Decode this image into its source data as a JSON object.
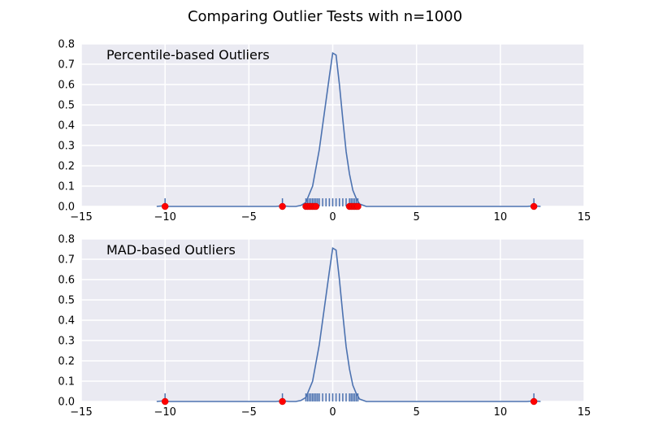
{
  "figure": {
    "title": "Comparing Outlier Tests with n=1000"
  },
  "chart_data": [
    {
      "type": "line",
      "annotation": "Percentile-based Outliers",
      "xlim": [
        -15,
        15
      ],
      "ylim": [
        0,
        0.8
      ],
      "xticks": [
        -15,
        -10,
        -5,
        0,
        5,
        10,
        15
      ],
      "xtick_labels": [
        "−15",
        "−10",
        "−5",
        "0",
        "5",
        "10",
        "15"
      ],
      "yticks": [
        0.0,
        0.1,
        0.2,
        0.3,
        0.4,
        0.5,
        0.6,
        0.7,
        0.8
      ],
      "ytick_labels": [
        "0.0",
        "0.1",
        "0.2",
        "0.3",
        "0.4",
        "0.5",
        "0.6",
        "0.7",
        "0.8"
      ],
      "grid": true,
      "density": {
        "x": [
          -10.5,
          -10.1,
          -9.8,
          -3.4,
          -3.0,
          -2.6,
          -2.2,
          -1.9,
          -1.6,
          -1.4,
          -1.2,
          -1.0,
          -0.8,
          -0.6,
          -0.4,
          -0.2,
          0.0,
          0.2,
          0.4,
          0.6,
          0.8,
          1.0,
          1.2,
          1.4,
          1.6,
          2.0,
          11.6,
          12.0,
          12.4
        ],
        "y": [
          0.0,
          0.003,
          0.0,
          0.0,
          0.003,
          0.0,
          0.0,
          0.005,
          0.02,
          0.06,
          0.1,
          0.19,
          0.28,
          0.4,
          0.52,
          0.64,
          0.755,
          0.745,
          0.6,
          0.43,
          0.27,
          0.16,
          0.08,
          0.04,
          0.012,
          0.0,
          0.0,
          0.003,
          0.0
        ]
      },
      "rug": [
        -10.0,
        -3.0,
        -1.6,
        -1.5,
        -1.4,
        -1.3,
        -1.2,
        -1.1,
        -1.0,
        -0.9,
        -0.8,
        -0.6,
        -0.4,
        -0.2,
        0.0,
        0.2,
        0.4,
        0.6,
        0.8,
        1.0,
        1.1,
        1.2,
        1.3,
        1.4,
        1.5,
        12.0
      ],
      "outliers": [
        -10.0,
        -3.0,
        -1.6,
        -1.5,
        -1.4,
        -1.3,
        -1.2,
        -1.1,
        -1.0,
        1.0,
        1.1,
        1.2,
        1.3,
        1.4,
        1.5,
        12.0
      ],
      "colors": {
        "line": "#4c72b0",
        "outlier": "#ff0000",
        "background": "#eaeaf2",
        "grid": "#ffffff"
      }
    },
    {
      "type": "line",
      "annotation": "MAD-based Outliers",
      "xlim": [
        -15,
        15
      ],
      "ylim": [
        0,
        0.8
      ],
      "xticks": [
        -15,
        -10,
        -5,
        0,
        5,
        10,
        15
      ],
      "xtick_labels": [
        "−15",
        "−10",
        "−5",
        "0",
        "5",
        "10",
        "15"
      ],
      "yticks": [
        0.0,
        0.1,
        0.2,
        0.3,
        0.4,
        0.5,
        0.6,
        0.7,
        0.8
      ],
      "ytick_labels": [
        "0.0",
        "0.1",
        "0.2",
        "0.3",
        "0.4",
        "0.5",
        "0.6",
        "0.7",
        "0.8"
      ],
      "grid": true,
      "density": {
        "x": [
          -10.5,
          -10.1,
          -9.8,
          -3.4,
          -3.0,
          -2.6,
          -2.2,
          -1.9,
          -1.6,
          -1.4,
          -1.2,
          -1.0,
          -0.8,
          -0.6,
          -0.4,
          -0.2,
          0.0,
          0.2,
          0.4,
          0.6,
          0.8,
          1.0,
          1.2,
          1.4,
          1.6,
          2.0,
          11.6,
          12.0,
          12.4
        ],
        "y": [
          0.0,
          0.003,
          0.0,
          0.0,
          0.003,
          0.0,
          0.0,
          0.005,
          0.02,
          0.06,
          0.1,
          0.19,
          0.28,
          0.4,
          0.52,
          0.64,
          0.755,
          0.745,
          0.6,
          0.43,
          0.27,
          0.16,
          0.08,
          0.04,
          0.012,
          0.0,
          0.0,
          0.003,
          0.0
        ]
      },
      "rug": [
        -10.0,
        -3.0,
        -1.6,
        -1.5,
        -1.4,
        -1.3,
        -1.2,
        -1.1,
        -1.0,
        -0.9,
        -0.8,
        -0.6,
        -0.4,
        -0.2,
        0.0,
        0.2,
        0.4,
        0.6,
        0.8,
        1.0,
        1.1,
        1.2,
        1.3,
        1.4,
        1.5,
        12.0
      ],
      "outliers": [
        -10.0,
        -3.0,
        12.0
      ],
      "colors": {
        "line": "#4c72b0",
        "outlier": "#ff0000",
        "background": "#eaeaf2",
        "grid": "#ffffff"
      }
    }
  ]
}
